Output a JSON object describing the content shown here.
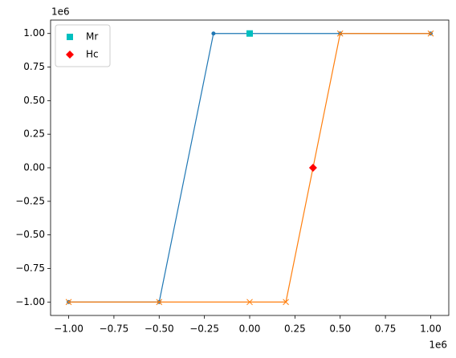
{
  "chart_data": {
    "type": "line",
    "xoffset": "1e6",
    "yoffset": "1e6",
    "xlim": [
      -1.1,
      1.1
    ],
    "ylim": [
      -1.1,
      1.1
    ],
    "xticks": [
      {
        "value": -1,
        "label": "−1.00"
      },
      {
        "value": -0.75,
        "label": "−0.75"
      },
      {
        "value": -0.5,
        "label": "−0.50"
      },
      {
        "value": -0.25,
        "label": "−0.25"
      },
      {
        "value": 0,
        "label": "0.00"
      },
      {
        "value": 0.25,
        "label": "0.25"
      },
      {
        "value": 0.5,
        "label": "0.50"
      },
      {
        "value": 0.75,
        "label": "0.75"
      },
      {
        "value": 1,
        "label": "1.00"
      }
    ],
    "yticks": [
      {
        "value": -1,
        "label": "−1.00"
      },
      {
        "value": -0.75,
        "label": "−0.75"
      },
      {
        "value": -0.5,
        "label": "−0.50"
      },
      {
        "value": -0.25,
        "label": "−0.25"
      },
      {
        "value": 0,
        "label": "0.00"
      },
      {
        "value": 0.25,
        "label": "0.25"
      },
      {
        "value": 0.5,
        "label": "0.50"
      },
      {
        "value": 0.75,
        "label": "0.75"
      },
      {
        "value": 1,
        "label": "1.00"
      }
    ],
    "legend": "upper left",
    "series": [
      {
        "color": "#1f77b4",
        "marker": "point",
        "line": true,
        "x": [
          -1,
          -0.5,
          -0.2,
          0.5,
          1
        ],
        "values": [
          -1,
          -1,
          1,
          1,
          1
        ]
      },
      {
        "color": "#ff7f0e",
        "marker": "x",
        "line": true,
        "x": [
          1,
          0.5,
          0.2,
          0,
          -0.5,
          -1
        ],
        "values": [
          1,
          1,
          -1,
          -1,
          -1,
          -1
        ]
      },
      {
        "name": "Mr",
        "color": "#00bfbf",
        "marker": "square",
        "line": false,
        "x": [
          0
        ],
        "values": [
          1
        ]
      },
      {
        "name": "Hc",
        "color": "#ff0000",
        "marker": "diamond",
        "line": false,
        "x": [
          0.35
        ],
        "values": [
          0
        ]
      }
    ]
  }
}
